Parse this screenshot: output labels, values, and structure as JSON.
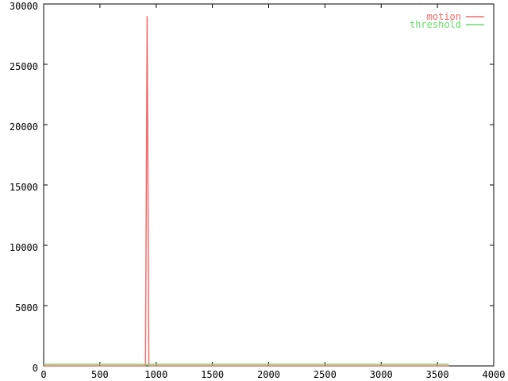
{
  "chart_data": {
    "type": "line",
    "title": "",
    "xlabel": "",
    "ylabel": "",
    "xlim": [
      0,
      4000
    ],
    "ylim": [
      0,
      30000
    ],
    "xticks": [
      0,
      500,
      1000,
      1500,
      2000,
      2500,
      3000,
      3500,
      4000
    ],
    "yticks": [
      0,
      5000,
      10000,
      15000,
      20000,
      25000,
      30000
    ],
    "grid": false,
    "legend_position": "top-right-inside",
    "background_color": "#ffffff",
    "border_color": "#000000",
    "series": [
      {
        "name": "motion",
        "color": "#f56a6a",
        "points": [
          [
            0,
            0
          ],
          [
            905,
            0
          ],
          [
            920,
            29000
          ],
          [
            935,
            0
          ],
          [
            3600,
            0
          ]
        ]
      },
      {
        "name": "threshold",
        "color": "#66dd66",
        "points": [
          [
            0,
            130
          ],
          [
            3600,
            130
          ]
        ]
      }
    ]
  }
}
